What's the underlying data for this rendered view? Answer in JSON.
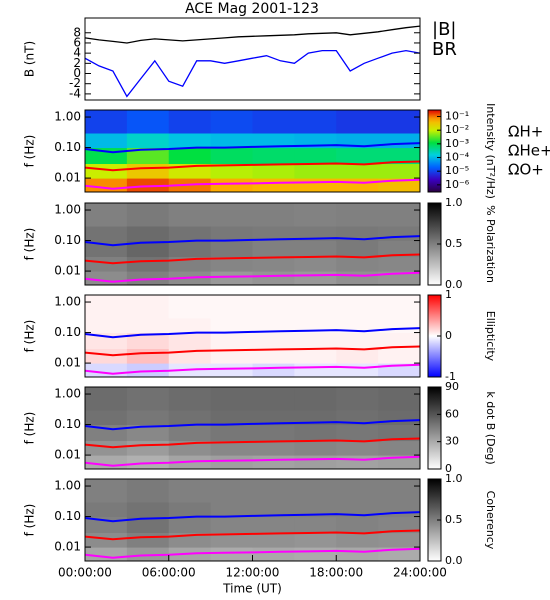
{
  "chart_data": [
    {
      "type": "line",
      "title": "ACE Mag 2001-123",
      "ylabel": "B (nT)",
      "xlim": [
        0,
        24
      ],
      "ylim": [
        -5.2,
        10.9
      ],
      "yticks": [
        -4,
        -2,
        0,
        2,
        4,
        6,
        8
      ],
      "x": [
        0,
        1,
        2,
        3,
        4,
        5,
        6,
        7,
        8,
        9,
        10,
        11,
        12,
        13,
        14,
        15,
        16,
        17,
        18,
        19,
        20,
        21,
        22,
        23,
        24
      ],
      "series": [
        {
          "name": "|B|",
          "color": "#000000",
          "values": [
            7.0,
            6.6,
            6.3,
            6.0,
            6.5,
            6.8,
            6.6,
            6.4,
            6.6,
            6.8,
            7.0,
            7.2,
            7.3,
            7.4,
            7.5,
            7.6,
            7.8,
            7.9,
            8.0,
            7.6,
            7.9,
            8.2,
            8.6,
            9.0,
            9.3
          ]
        },
        {
          "name": "BR",
          "color": "#0000ff",
          "values": [
            3.0,
            1.5,
            0.5,
            -4.5,
            -1.0,
            2.5,
            -1.5,
            -2.5,
            2.5,
            2.5,
            2.0,
            2.5,
            3.0,
            3.5,
            2.5,
            2.0,
            4.0,
            4.5,
            4.5,
            0.5,
            2.0,
            3.0,
            4.0,
            4.5,
            4.0
          ]
        }
      ]
    },
    {
      "type": "spectrogram",
      "ylabel": "f (Hz)",
      "zlabel": "Intensity (nT²/Hz)",
      "colormap": "rainbow",
      "zlog": true,
      "xlim": [
        0,
        24
      ],
      "ylim": [
        0.0035,
        1.7
      ],
      "ylog": true,
      "yticks": [
        {
          "value": 1,
          "label": "1.00"
        },
        {
          "value": 0.1,
          "label": "0.10"
        },
        {
          "value": 0.01,
          "label": "0.01"
        }
      ],
      "zlim": [
        3e-07,
        0.3
      ],
      "zticks": [
        {
          "value": 0.1,
          "label": "10⁻¹"
        },
        {
          "value": 0.01,
          "label": "10⁻²"
        },
        {
          "value": 0.001,
          "label": "10⁻³"
        },
        {
          "value": 0.0001,
          "label": "10⁻⁴"
        },
        {
          "value": 1e-05,
          "label": "10⁻⁵"
        },
        {
          "value": 1e-06,
          "label": "10⁻⁶"
        }
      ],
      "t_bins": [
        0,
        3,
        6,
        9,
        12,
        15,
        18,
        21,
        24
      ],
      "f_bins": [
        0.0035,
        0.01,
        0.03,
        0.1,
        0.3,
        1.7
      ],
      "z": [
        [
          0.08,
          0.15,
          0.1,
          0.06,
          0.05,
          0.05,
          0.05,
          0.04
        ],
        [
          0.01,
          0.03,
          0.012,
          0.008,
          0.007,
          0.006,
          0.006,
          0.006
        ],
        [
          0.001,
          0.003,
          0.0012,
          0.0008,
          0.0007,
          0.0007,
          0.0006,
          0.0006
        ],
        [
          0.0001,
          0.0002,
          0.00012,
          0.0001,
          0.0001,
          9e-05,
          8e-05,
          8e-05
        ],
        [
          1e-05,
          1.5e-05,
          1e-05,
          1.2e-05,
          1e-05,
          1e-05,
          8e-06,
          8e-06
        ]
      ],
      "x": [
        0,
        2,
        4,
        6,
        8,
        10,
        12,
        14,
        16,
        18,
        20,
        22,
        24
      ],
      "series": [
        {
          "name": "ΩH+",
          "color": "#0000ff",
          "values": [
            0.09,
            0.07,
            0.085,
            0.09,
            0.1,
            0.1,
            0.105,
            0.11,
            0.115,
            0.12,
            0.11,
            0.13,
            0.14
          ]
        },
        {
          "name": "ΩHe+",
          "color": "#ff0000",
          "values": [
            0.022,
            0.018,
            0.021,
            0.022,
            0.025,
            0.026,
            0.027,
            0.028,
            0.029,
            0.03,
            0.028,
            0.033,
            0.035
          ]
        },
        {
          "name": "ΩO+",
          "color": "#ff00ff",
          "values": [
            0.0056,
            0.0045,
            0.0053,
            0.0056,
            0.0063,
            0.0065,
            0.0067,
            0.007,
            0.0072,
            0.0075,
            0.007,
            0.0082,
            0.0088
          ]
        }
      ]
    },
    {
      "type": "spectrogram",
      "ylabel": "f (Hz)",
      "zlabel": "% Polarization",
      "colormap": "gray_r",
      "zlog": false,
      "xlim": [
        0,
        24
      ],
      "ylim": [
        0.0035,
        1.7
      ],
      "ylog": true,
      "yticks": [
        {
          "value": 1,
          "label": "1.00"
        },
        {
          "value": 0.1,
          "label": "0.10"
        },
        {
          "value": 0.01,
          "label": "0.01"
        }
      ],
      "zlim": [
        0,
        1
      ],
      "zticks": [
        {
          "value": 0,
          "label": "0.0"
        },
        {
          "value": 0.5,
          "label": "0.5"
        },
        {
          "value": 1,
          "label": "1.0"
        }
      ],
      "t_bins": [
        0,
        3,
        6,
        9,
        12,
        15,
        18,
        21,
        24
      ],
      "f_bins": [
        0.0035,
        0.01,
        0.03,
        0.1,
        0.3,
        1.7
      ],
      "z": [
        [
          0.45,
          0.5,
          0.45,
          0.4,
          0.42,
          0.4,
          0.43,
          0.42
        ],
        [
          0.5,
          0.55,
          0.5,
          0.48,
          0.47,
          0.46,
          0.48,
          0.47
        ],
        [
          0.55,
          0.6,
          0.55,
          0.52,
          0.5,
          0.5,
          0.52,
          0.5
        ],
        [
          0.55,
          0.58,
          0.55,
          0.53,
          0.52,
          0.52,
          0.53,
          0.52
        ],
        [
          0.5,
          0.52,
          0.5,
          0.5,
          0.5,
          0.49,
          0.5,
          0.5
        ]
      ],
      "x": [
        0,
        2,
        4,
        6,
        8,
        10,
        12,
        14,
        16,
        18,
        20,
        22,
        24
      ],
      "series": [
        {
          "color": "#0000ff",
          "values": [
            0.09,
            0.07,
            0.085,
            0.09,
            0.1,
            0.1,
            0.105,
            0.11,
            0.115,
            0.12,
            0.11,
            0.13,
            0.14
          ]
        },
        {
          "color": "#ff0000",
          "values": [
            0.022,
            0.018,
            0.021,
            0.022,
            0.025,
            0.026,
            0.027,
            0.028,
            0.029,
            0.03,
            0.028,
            0.033,
            0.035
          ]
        },
        {
          "color": "#ff00ff",
          "values": [
            0.0056,
            0.0045,
            0.0053,
            0.0056,
            0.0063,
            0.0065,
            0.0067,
            0.007,
            0.0072,
            0.0075,
            0.007,
            0.0082,
            0.0088
          ]
        }
      ]
    },
    {
      "type": "spectrogram",
      "ylabel": "f (Hz)",
      "zlabel": "Ellipticity",
      "colormap": "bwr",
      "zlog": false,
      "xlim": [
        0,
        24
      ],
      "ylim": [
        0.0035,
        1.7
      ],
      "ylog": true,
      "yticks": [
        {
          "value": 1,
          "label": "1.00"
        },
        {
          "value": 0.1,
          "label": "0.10"
        },
        {
          "value": 0.01,
          "label": "0.01"
        }
      ],
      "zlim": [
        -1,
        1
      ],
      "zticks": [
        -1,
        0,
        1
      ],
      "t_bins": [
        0,
        3,
        6,
        9,
        12,
        15,
        18,
        21,
        24
      ],
      "f_bins": [
        0.0035,
        0.01,
        0.03,
        0.1,
        0.3,
        1.7
      ],
      "z": [
        [
          -0.15,
          -0.2,
          -0.1,
          -0.1,
          -0.15,
          -0.1,
          -0.1,
          -0.15
        ],
        [
          0.15,
          0.25,
          0.1,
          0.05,
          0.05,
          0.05,
          0.08,
          0.05
        ],
        [
          0.1,
          0.15,
          0.1,
          0.05,
          0.05,
          0.05,
          0.05,
          0.05
        ],
        [
          0.05,
          0.05,
          0.05,
          0.03,
          0.03,
          0.03,
          0.03,
          0.03
        ],
        [
          0.05,
          0.05,
          0.03,
          0.03,
          0.03,
          0.03,
          0.03,
          0.03
        ]
      ],
      "x": [
        0,
        2,
        4,
        6,
        8,
        10,
        12,
        14,
        16,
        18,
        20,
        22,
        24
      ],
      "series": [
        {
          "color": "#0000ff",
          "values": [
            0.09,
            0.07,
            0.085,
            0.09,
            0.1,
            0.1,
            0.105,
            0.11,
            0.115,
            0.12,
            0.11,
            0.13,
            0.14
          ]
        },
        {
          "color": "#ff0000",
          "values": [
            0.022,
            0.018,
            0.021,
            0.022,
            0.025,
            0.026,
            0.027,
            0.028,
            0.029,
            0.03,
            0.028,
            0.033,
            0.035
          ]
        },
        {
          "color": "#ff00ff",
          "values": [
            0.0056,
            0.0045,
            0.0053,
            0.0056,
            0.0063,
            0.0065,
            0.0067,
            0.007,
            0.0072,
            0.0075,
            0.007,
            0.0082,
            0.0088
          ]
        }
      ]
    },
    {
      "type": "spectrogram",
      "ylabel": "f (Hz)",
      "zlabel": "k dot B (Deg)",
      "colormap": "gray_r",
      "zlog": false,
      "xlim": [
        0,
        24
      ],
      "ylim": [
        0.0035,
        1.7
      ],
      "ylog": true,
      "yticks": [
        {
          "value": 1,
          "label": "1.00"
        },
        {
          "value": 0.1,
          "label": "0.10"
        },
        {
          "value": 0.01,
          "label": "0.01"
        }
      ],
      "zlim": [
        0,
        90
      ],
      "zticks": [
        0,
        30,
        60,
        90
      ],
      "t_bins": [
        0,
        3,
        6,
        9,
        12,
        15,
        18,
        21,
        24
      ],
      "f_bins": [
        0.0035,
        0.01,
        0.03,
        0.1,
        0.3,
        1.7
      ],
      "z": [
        [
          30,
          28,
          32,
          34,
          33,
          34,
          33,
          34
        ],
        [
          38,
          35,
          40,
          42,
          42,
          43,
          42,
          43
        ],
        [
          45,
          42,
          46,
          48,
          48,
          49,
          48,
          49
        ],
        [
          50,
          48,
          50,
          52,
          52,
          52,
          51,
          52
        ],
        [
          52,
          50,
          52,
          53,
          53,
          53,
          52,
          53
        ]
      ],
      "x": [
        0,
        2,
        4,
        6,
        8,
        10,
        12,
        14,
        16,
        18,
        20,
        22,
        24
      ],
      "series": [
        {
          "color": "#0000ff",
          "values": [
            0.09,
            0.07,
            0.085,
            0.09,
            0.1,
            0.1,
            0.105,
            0.11,
            0.115,
            0.12,
            0.11,
            0.13,
            0.14
          ]
        },
        {
          "color": "#ff0000",
          "values": [
            0.022,
            0.018,
            0.021,
            0.022,
            0.025,
            0.026,
            0.027,
            0.028,
            0.029,
            0.03,
            0.028,
            0.033,
            0.035
          ]
        },
        {
          "color": "#ff00ff",
          "values": [
            0.0056,
            0.0045,
            0.0053,
            0.0056,
            0.0063,
            0.0065,
            0.0067,
            0.007,
            0.0072,
            0.0075,
            0.007,
            0.0082,
            0.0088
          ]
        }
      ]
    },
    {
      "type": "spectrogram",
      "ylabel": "f (Hz)",
      "zlabel": "Coherency",
      "colormap": "gray_r",
      "zlog": false,
      "xlim": [
        0,
        24
      ],
      "ylim": [
        0.0035,
        1.7
      ],
      "ylog": true,
      "yticks": [
        {
          "value": 1,
          "label": "1.00"
        },
        {
          "value": 0.1,
          "label": "0.10"
        },
        {
          "value": 0.01,
          "label": "0.01"
        }
      ],
      "zlim": [
        0,
        1
      ],
      "zticks": [
        {
          "value": 0,
          "label": "0.0"
        },
        {
          "value": 0.5,
          "label": "0.5"
        },
        {
          "value": 1,
          "label": "1.0"
        }
      ],
      "t_bins": [
        0,
        3,
        6,
        9,
        12,
        15,
        18,
        21,
        24
      ],
      "f_bins": [
        0.0035,
        0.01,
        0.03,
        0.1,
        0.3,
        1.7
      ],
      "z": [
        [
          0.35,
          0.4,
          0.35,
          0.33,
          0.34,
          0.33,
          0.34,
          0.33
        ],
        [
          0.45,
          0.5,
          0.45,
          0.43,
          0.43,
          0.42,
          0.44,
          0.43
        ],
        [
          0.5,
          0.55,
          0.5,
          0.48,
          0.48,
          0.48,
          0.49,
          0.48
        ],
        [
          0.52,
          0.55,
          0.52,
          0.5,
          0.5,
          0.5,
          0.5,
          0.5
        ],
        [
          0.5,
          0.52,
          0.5,
          0.5,
          0.5,
          0.5,
          0.5,
          0.5
        ]
      ],
      "x": [
        0,
        2,
        4,
        6,
        8,
        10,
        12,
        14,
        16,
        18,
        20,
        22,
        24
      ],
      "series": [
        {
          "color": "#0000ff",
          "values": [
            0.09,
            0.07,
            0.085,
            0.09,
            0.1,
            0.1,
            0.105,
            0.11,
            0.115,
            0.12,
            0.11,
            0.13,
            0.14
          ]
        },
        {
          "color": "#ff0000",
          "values": [
            0.022,
            0.018,
            0.021,
            0.022,
            0.025,
            0.026,
            0.027,
            0.028,
            0.029,
            0.03,
            0.028,
            0.033,
            0.035
          ]
        },
        {
          "color": "#ff00ff",
          "values": [
            0.0056,
            0.0045,
            0.0053,
            0.0056,
            0.0063,
            0.0065,
            0.0067,
            0.007,
            0.0072,
            0.0075,
            0.007,
            0.0082,
            0.0088
          ]
        }
      ],
      "xticks": [
        {
          "value": 0,
          "label": "00:00:00"
        },
        {
          "value": 6,
          "label": "06:00:00"
        },
        {
          "value": 12,
          "label": "12:00:00"
        },
        {
          "value": 18,
          "label": "18:00:00"
        },
        {
          "value": 24,
          "label": "24:00:00"
        }
      ],
      "xlabel": "Time (UT)"
    }
  ]
}
